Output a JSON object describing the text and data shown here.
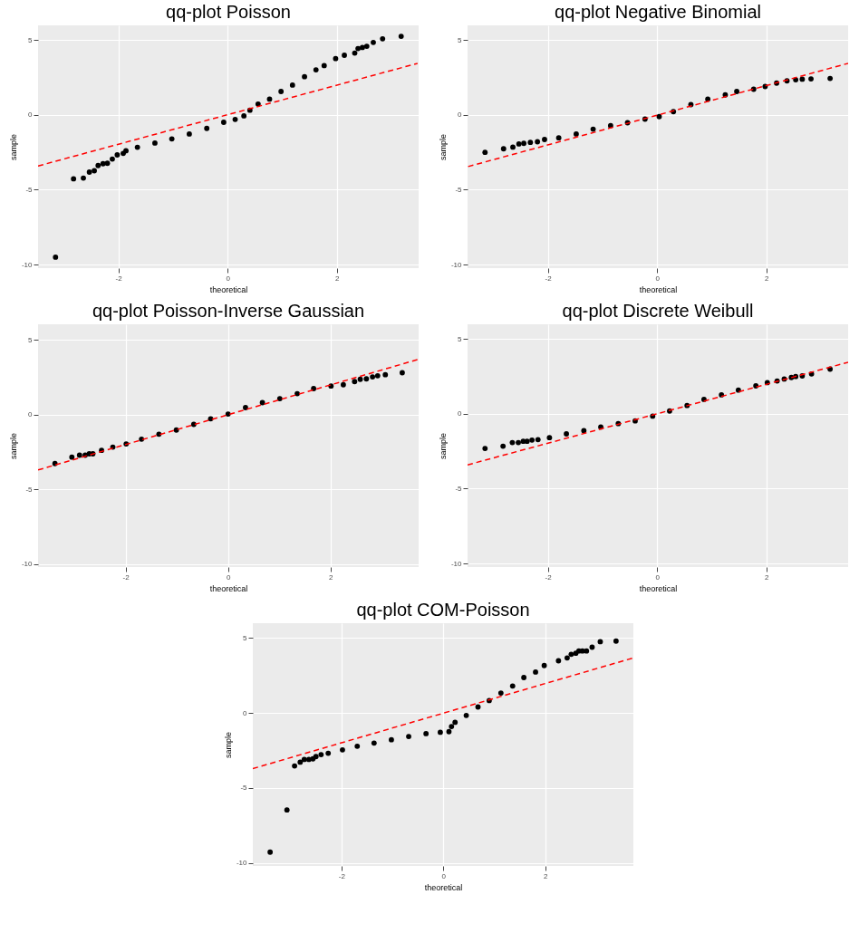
{
  "chart_data": [
    {
      "type": "scatter",
      "title": "qq-plot Poisson",
      "xlabel": "theoretical",
      "ylabel": "sample",
      "xlim": [
        -3.47,
        3.5
      ],
      "ylim": [
        -10.24,
        5.99
      ],
      "xticks": [
        -2,
        0,
        2
      ],
      "yticks": [
        -10,
        -5,
        0,
        5
      ],
      "grid": true,
      "series": [
        {
          "marker": "circle",
          "color": "#000000",
          "x": [
            -3.15,
            -2.82,
            -2.64,
            -2.53,
            -2.44,
            -2.37,
            -2.28,
            -2.2,
            -2.11,
            -2.02,
            -1.91,
            -1.86,
            -1.65,
            -1.33,
            -1.02,
            -0.7,
            -0.38,
            -0.07,
            0.14,
            0.3,
            0.41,
            0.56,
            0.77,
            0.98,
            1.19,
            1.41,
            1.62,
            1.77,
            1.98,
            2.14,
            2.33,
            2.39,
            2.47,
            2.55,
            2.67,
            2.84,
            3.18
          ],
          "values": [
            -9.51,
            -4.27,
            -4.22,
            -3.82,
            -3.73,
            -3.38,
            -3.26,
            -3.23,
            -2.95,
            -2.67,
            -2.57,
            -2.39,
            -2.16,
            -1.88,
            -1.6,
            -1.27,
            -0.9,
            -0.49,
            -0.3,
            -0.06,
            0.32,
            0.73,
            1.06,
            1.57,
            2.0,
            2.56,
            3.02,
            3.3,
            3.77,
            3.99,
            4.14,
            4.44,
            4.51,
            4.59,
            4.85,
            5.09,
            5.26
          ]
        },
        {
          "type": "line",
          "color": "#ff0000",
          "line_style": "dashed",
          "x": [
            -3.47,
            3.48
          ],
          "values": [
            -3.41,
            3.45
          ]
        }
      ]
    },
    {
      "type": "scatter",
      "title": "qq-plot Negative Binomial",
      "xlabel": "theoretical",
      "ylabel": "sample",
      "xlim": [
        -3.47,
        3.5
      ],
      "ylim": [
        -10.24,
        5.99
      ],
      "xticks": [
        -2,
        0,
        2
      ],
      "yticks": [
        -10,
        -5,
        0,
        5
      ],
      "grid": true,
      "series": [
        {
          "marker": "circle",
          "color": "#000000",
          "x": [
            -3.15,
            -2.81,
            -2.64,
            -2.53,
            -2.44,
            -2.32,
            -2.19,
            -2.06,
            -1.8,
            -1.48,
            -1.17,
            -0.85,
            -0.54,
            -0.22,
            0.04,
            0.3,
            0.62,
            0.93,
            1.25,
            1.46,
            1.77,
            1.98,
            2.19,
            2.38,
            2.54,
            2.66,
            2.82,
            3.17
          ],
          "values": [
            -2.5,
            -2.26,
            -2.15,
            -1.94,
            -1.9,
            -1.83,
            -1.79,
            -1.64,
            -1.53,
            -1.27,
            -0.95,
            -0.71,
            -0.52,
            -0.28,
            -0.11,
            0.22,
            0.69,
            1.06,
            1.34,
            1.57,
            1.72,
            1.9,
            2.13,
            2.28,
            2.35,
            2.39,
            2.41,
            2.44
          ]
        },
        {
          "type": "line",
          "color": "#ff0000",
          "line_style": "dashed",
          "x": [
            -3.46,
            3.5
          ],
          "values": [
            -3.45,
            3.45
          ]
        }
      ]
    },
    {
      "type": "scatter",
      "title": "qq-plot Poisson-Inverse Gaussian",
      "xlabel": "theoretical",
      "ylabel": "sample",
      "xlim": [
        -3.71,
        3.72
      ],
      "ylim": [
        -10.19,
        6.04
      ],
      "xticks": [
        -2,
        0,
        2
      ],
      "yticks": [
        -10,
        -5,
        0,
        5
      ],
      "grid": true,
      "series": [
        {
          "marker": "circle",
          "color": "#000000",
          "x": [
            -3.38,
            -3.05,
            -2.9,
            -2.79,
            -2.71,
            -2.64,
            -2.47,
            -2.25,
            -1.99,
            -1.69,
            -1.35,
            -1.01,
            -0.67,
            -0.34,
            0,
            0.34,
            0.67,
            1.01,
            1.35,
            1.67,
            2.01,
            2.25,
            2.47,
            2.58,
            2.7,
            2.82,
            2.92,
            3.07,
            3.4
          ],
          "values": [
            -3.27,
            -2.84,
            -2.71,
            -2.71,
            -2.62,
            -2.62,
            -2.39,
            -2.17,
            -1.96,
            -1.64,
            -1.31,
            -1.03,
            -0.65,
            -0.28,
            0.04,
            0.47,
            0.8,
            1.07,
            1.4,
            1.74,
            1.91,
            2.0,
            2.21,
            2.36,
            2.39,
            2.52,
            2.6,
            2.67,
            2.8
          ]
        },
        {
          "type": "line",
          "color": "#ff0000",
          "line_style": "dashed",
          "x": [
            -3.71,
            3.72
          ],
          "values": [
            -3.7,
            3.7
          ]
        }
      ]
    },
    {
      "type": "scatter",
      "title": "qq-plot Discrete Weibull",
      "xlabel": "theoretical",
      "ylabel": "sample",
      "xlim": [
        -3.47,
        3.5
      ],
      "ylim": [
        -10.24,
        5.99
      ],
      "xticks": [
        -2,
        0,
        2
      ],
      "yticks": [
        -10,
        -5,
        0,
        5
      ],
      "grid": true,
      "series": [
        {
          "marker": "circle",
          "color": "#000000",
          "x": [
            -3.15,
            -2.82,
            -2.65,
            -2.54,
            -2.45,
            -2.38,
            -2.29,
            -2.18,
            -1.97,
            -1.66,
            -1.34,
            -1.03,
            -0.71,
            -0.4,
            -0.08,
            0.23,
            0.55,
            0.86,
            1.18,
            1.49,
            1.81,
            2.02,
            2.2,
            2.33,
            2.46,
            2.54,
            2.66,
            2.83,
            3.17
          ],
          "values": [
            -2.31,
            -2.16,
            -1.92,
            -1.92,
            -1.83,
            -1.83,
            -1.75,
            -1.72,
            -1.59,
            -1.34,
            -1.12,
            -0.88,
            -0.65,
            -0.47,
            -0.15,
            0.19,
            0.56,
            0.97,
            1.27,
            1.59,
            1.87,
            2.09,
            2.2,
            2.33,
            2.43,
            2.5,
            2.54,
            2.67,
            2.99
          ]
        },
        {
          "type": "line",
          "color": "#ff0000",
          "line_style": "dashed",
          "x": [
            -3.47,
            3.5
          ],
          "values": [
            -3.41,
            3.45
          ]
        }
      ]
    },
    {
      "type": "scatter",
      "title": "qq-plot COM-Poisson",
      "xlabel": "theoretical",
      "ylabel": "sample",
      "xlim": [
        -3.74,
        3.73
      ],
      "ylim": [
        -10.19,
        5.97
      ],
      "xticks": [
        -2,
        0,
        2
      ],
      "yticks": [
        -10,
        -5,
        0,
        5
      ],
      "grid": true,
      "series": [
        {
          "marker": "circle",
          "color": "#000000",
          "x": [
            -3.4,
            -3.07,
            -2.92,
            -2.81,
            -2.73,
            -2.64,
            -2.56,
            -2.5,
            -2.4,
            -2.26,
            -1.98,
            -1.69,
            -1.36,
            -1.02,
            -0.68,
            -0.34,
            -0.06,
            0.11,
            0.16,
            0.23,
            0.45,
            0.68,
            0.9,
            1.13,
            1.36,
            1.58,
            1.81,
            1.98,
            2.26,
            2.43,
            2.51,
            2.6,
            2.66,
            2.73,
            2.81,
            2.92,
            3.08,
            3.39
          ],
          "values": [
            -9.27,
            -6.46,
            -3.53,
            -3.28,
            -3.1,
            -3.1,
            -3.06,
            -2.91,
            -2.78,
            -2.69,
            -2.46,
            -2.22,
            -2.01,
            -1.79,
            -1.57,
            -1.38,
            -1.29,
            -1.25,
            -0.91,
            -0.63,
            -0.17,
            0.39,
            0.82,
            1.32,
            1.79,
            2.35,
            2.72,
            3.15,
            3.47,
            3.66,
            3.9,
            3.97,
            4.12,
            4.12,
            4.12,
            4.37,
            4.74,
            4.78
          ]
        },
        {
          "type": "line",
          "color": "#ff0000",
          "line_style": "dashed",
          "x": [
            -3.74,
            3.73
          ],
          "values": [
            -3.71,
            3.66
          ]
        }
      ]
    }
  ]
}
